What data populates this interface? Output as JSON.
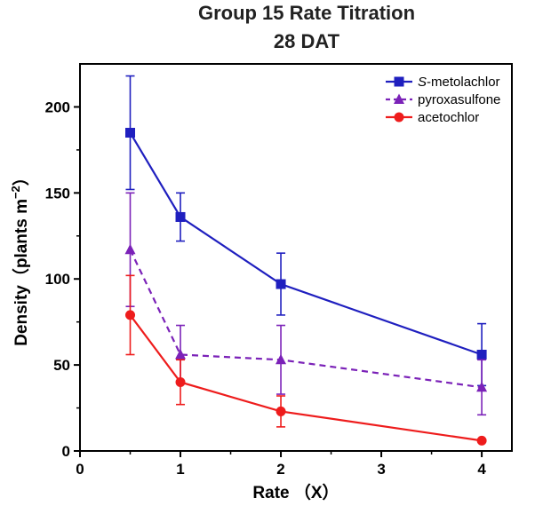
{
  "chart_data": {
    "type": "line",
    "title": "Group 15 Rate Titration",
    "subtitle": "28 DAT",
    "xlabel": "Rate （X）",
    "ylabel_main": "Density（plants m",
    "ylabel_sup": "−2",
    "ylabel_close": "）",
    "xlim": [
      0,
      4.3
    ],
    "ylim": [
      0,
      225
    ],
    "xticks": [
      0,
      1,
      2,
      3,
      4
    ],
    "yticks": [
      0,
      50,
      100,
      150,
      200
    ],
    "legend_position": "top-right",
    "series": [
      {
        "name": "S-metolachlor",
        "name_italic": "S",
        "name_rest": "-metolachlor",
        "color": "#1f1fbf",
        "marker": "square",
        "dash": "solid",
        "x": [
          0.5,
          1,
          2,
          4
        ],
        "y": [
          185,
          136,
          97,
          56
        ],
        "err": [
          33,
          14,
          18,
          18
        ]
      },
      {
        "name": "pyroxasulfone",
        "name_italic": "",
        "name_rest": "pyroxasulfone",
        "color": "#7b22b8",
        "marker": "triangle",
        "dash": "dashed",
        "x": [
          0.5,
          1,
          2,
          4
        ],
        "y": [
          117,
          56,
          53,
          37
        ],
        "err": [
          33,
          17,
          20,
          16
        ]
      },
      {
        "name": "acetochlor",
        "name_italic": "",
        "name_rest": "acetochlor",
        "color": "#ee1c1c",
        "marker": "circle",
        "dash": "solid",
        "x": [
          0.5,
          1,
          2,
          4
        ],
        "y": [
          79,
          40,
          23,
          6
        ],
        "err": [
          23,
          13,
          9,
          0
        ]
      }
    ]
  }
}
